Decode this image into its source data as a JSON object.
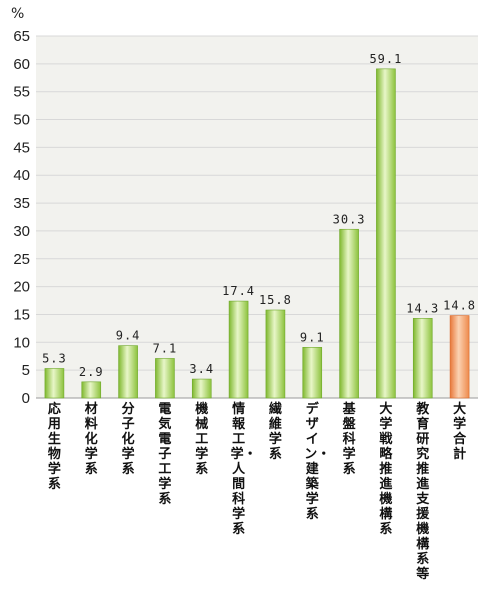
{
  "chart_data": {
    "type": "bar",
    "unit": "%",
    "ylim": [
      0,
      65
    ],
    "yticks": [
      "0",
      "5",
      "10",
      "15",
      "20",
      "25",
      "30",
      "35",
      "40",
      "45",
      "50",
      "55",
      "60",
      "65"
    ],
    "categories": [
      "応用生物学系",
      "材料化学系",
      "分子化学系",
      "電気電子工学系",
      "機械工学系",
      "情報工学・人間科学系",
      "繊維学系",
      "デザイン・建築学系",
      "基盤科学系",
      "大学戦略推進機構系",
      "教育研究推進支援機構系等",
      "大学合計"
    ],
    "values": [
      5.3,
      2.9,
      9.4,
      7.1,
      3.4,
      17.4,
      15.8,
      9.1,
      30.3,
      59.1,
      14.3,
      14.8
    ],
    "value_labels": [
      "5.3",
      "2.9",
      "9.4",
      "7.1",
      "3.4",
      "17.4",
      "15.8",
      "9.1",
      "30.3",
      "59.1",
      "14.3",
      "14.8"
    ],
    "highlight_index": 11,
    "colors": {
      "bar": "#9acd4a",
      "bar_light": "#e8f6c8",
      "highlight": "#f08c50",
      "highlight_light": "#fbd2b2",
      "grid": "#d8d8d8",
      "plot_bg": "#f2f2ee"
    },
    "grid": true,
    "legend": "none"
  }
}
